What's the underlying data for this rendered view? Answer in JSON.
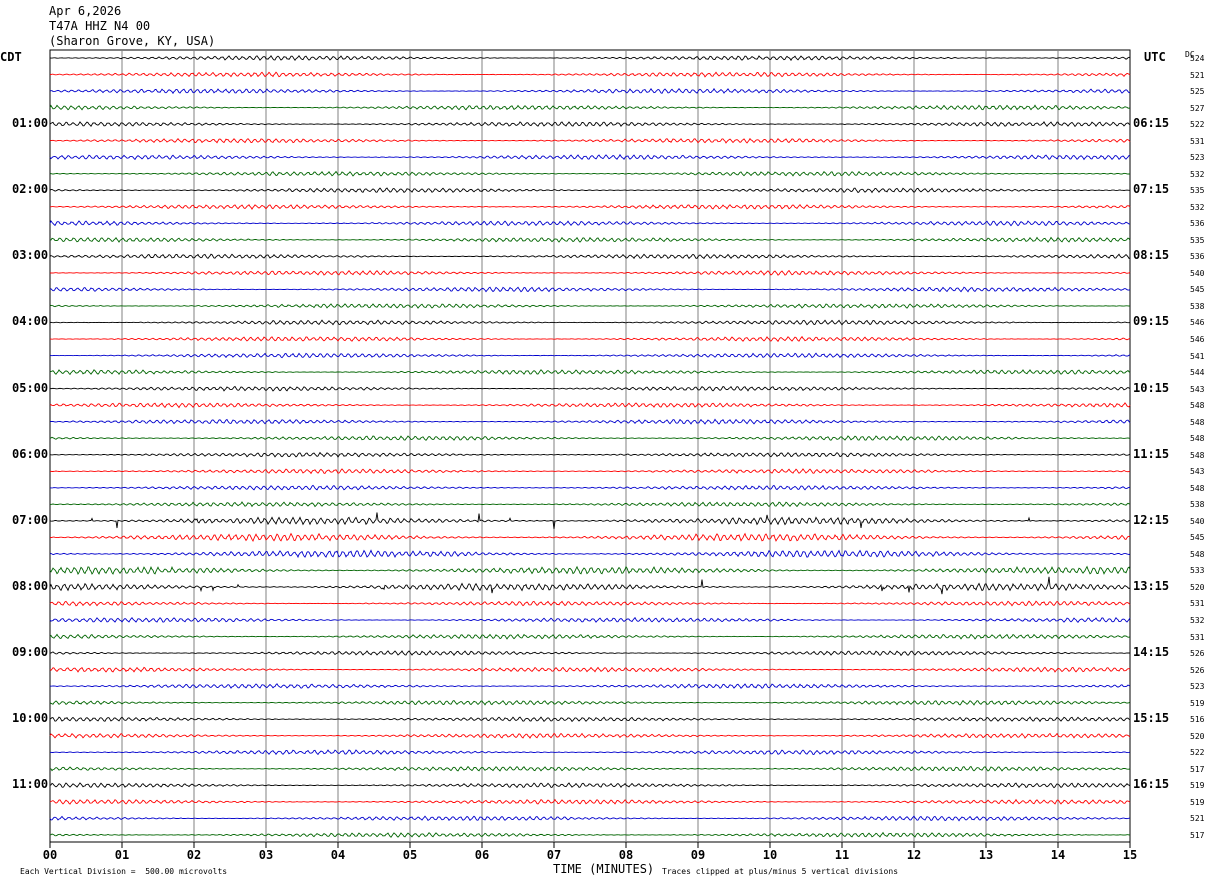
{
  "header": {
    "date": "Apr 6,2026",
    "station": "T47A HHZ N4 00",
    "location": "(Sharon Grove, KY, USA)"
  },
  "left_zone": "CDT",
  "right_zone": "UTC",
  "dc_header": "DC",
  "footer": {
    "vertical_division": "Each Vertical Division =  500.00 microvolts",
    "xlabel": "TIME (MINUTES)",
    "clip_note": "Traces clipped at plus/minus 5 vertical divisions"
  },
  "colors": {
    "cycle": [
      "#000000",
      "#ff0000",
      "#0000cc",
      "#006400"
    ],
    "grid": "#808080"
  },
  "chart_data": {
    "type": "line",
    "x_ticks": [
      "00",
      "01",
      "02",
      "03",
      "04",
      "05",
      "06",
      "07",
      "08",
      "09",
      "10",
      "11",
      "12",
      "13",
      "14",
      "15"
    ],
    "xlim": [
      0,
      15
    ],
    "rows_per_hour": 4,
    "left_hour_labels": [
      "01:00",
      "02:00",
      "03:00",
      "04:00",
      "05:00",
      "06:00",
      "07:00",
      "08:00",
      "09:00",
      "10:00",
      "11:00"
    ],
    "right_hour_labels": [
      "06:15",
      "07:15",
      "08:15",
      "09:15",
      "10:15",
      "11:15",
      "12:15",
      "13:15",
      "14:15",
      "15:15",
      "16:15"
    ],
    "dc_offsets": [
      "524",
      "521",
      "525",
      "527",
      "522",
      "531",
      "523",
      "532",
      "535",
      "532",
      "536",
      "535",
      "536",
      "540",
      "545",
      "538",
      "546",
      "546",
      "541",
      "544",
      "543",
      "548",
      "548",
      "548",
      "548",
      "543",
      "548",
      "538",
      "540",
      "545",
      "548",
      "533",
      "520",
      "531",
      "532",
      "531",
      "526",
      "526",
      "523",
      "519",
      "516",
      "520",
      "522",
      "517",
      "519",
      "519",
      "521",
      "517"
    ]
  }
}
